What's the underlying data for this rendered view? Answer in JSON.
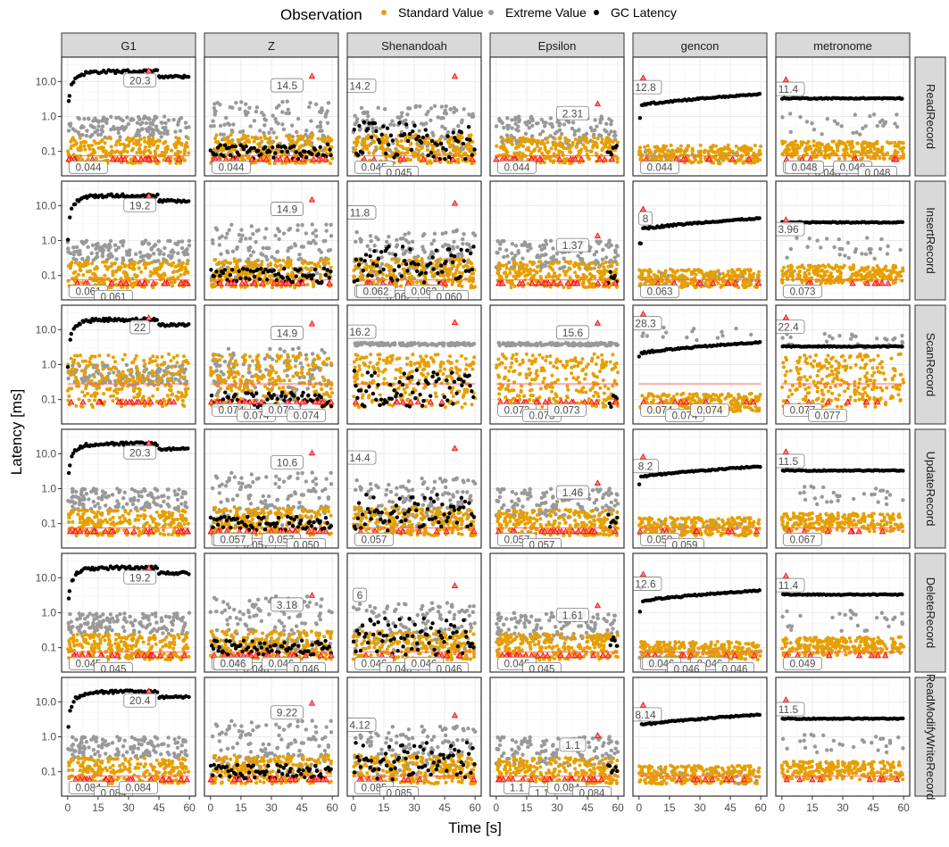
{
  "chart_data": {
    "type": "scatter",
    "legend": {
      "title": "Observation",
      "position": "top",
      "entries": [
        {
          "name": "Standard Value",
          "color": "#e69f00"
        },
        {
          "name": "Extreme Value",
          "color": "#999999"
        },
        {
          "name": "GC Latency",
          "color": "#000000"
        }
      ]
    },
    "xlabel": "Time [s]",
    "ylabel": "Latency [ms]",
    "x_ticks": [
      "0",
      "15",
      "30",
      "45",
      "60"
    ],
    "x_tick_values": [
      0,
      15,
      30,
      45,
      60
    ],
    "xlim": [
      -3,
      63
    ],
    "y_scale": "log",
    "y_ticks": [
      "10.0",
      "1.0",
      "0.1"
    ],
    "y_tick_values": [
      10,
      1,
      0.1
    ],
    "ylim": [
      0.02,
      50
    ],
    "grid": true,
    "columns": [
      "G1",
      "Z",
      "Shenandoah",
      "Epsilon",
      "gencon",
      "metronome"
    ],
    "rows": [
      "ReadRecord",
      "InsertRecord",
      "ScanRecord",
      "UpdateRecord",
      "DeleteRecord",
      "ReadModifyWriteRecord"
    ],
    "colors": {
      "standard": "#e69f00",
      "extreme": "#999999",
      "gc": "#000000",
      "marker": "#ff0000",
      "median_line": "#ff6666",
      "strip_fill": "#d9d9d9"
    },
    "annotations": [
      [
        "20.3",
        "14.5",
        "14.2",
        "2.31",
        "12.8",
        "11.4"
      ],
      [
        "19.2",
        "14.9",
        "11.8",
        "1.37",
        "8",
        "3.96"
      ],
      [
        "22",
        "14.9",
        "16.2",
        "15.6",
        "28.3",
        "22.4"
      ],
      [
        "20.3",
        "10.6",
        "14.4",
        "1.46",
        "8.2",
        "11.5"
      ],
      [
        "19.2",
        "3.18",
        "6",
        "1.61",
        "12.6",
        "11.4"
      ],
      [
        "20.4",
        "9.22",
        "4.12",
        "1.1",
        "8.14",
        "11.5"
      ]
    ],
    "min_annotations": [
      [
        [
          "0.044"
        ],
        [
          "0.044"
        ],
        [
          "0.045",
          "0.045"
        ],
        [
          "0.044"
        ],
        [
          "0.044"
        ],
        [
          "0.048",
          "0.048",
          "0.048",
          "0.048",
          "0.048"
        ]
      ],
      [
        [
          "0.061",
          "0.061"
        ],
        [],
        [
          "0.062",
          "0.062",
          "0.062",
          "0.060",
          "0.062"
        ],
        [],
        [
          "0.063"
        ],
        [
          "0.073"
        ]
      ],
      [
        [],
        [
          "0.074",
          "0.074",
          "0.070",
          "0.074"
        ],
        [],
        [
          "0.073",
          "0.073",
          "0.073"
        ],
        [
          "0.074",
          "0.074",
          "0.074"
        ],
        [
          "0.077",
          "0.077"
        ]
      ],
      [
        [],
        [
          "0.057",
          "0.057",
          "0.057",
          "0.050",
          "0.057"
        ],
        [
          "0.057"
        ],
        [
          "0.057",
          "0.057"
        ],
        [
          "0.059",
          "0.059"
        ],
        [
          "0.067"
        ]
      ],
      [
        [
          "0.045",
          "0.045"
        ],
        [
          "0.046",
          "0.046",
          "0.046",
          "0.046",
          "0.046"
        ],
        [
          "0.046",
          "0.046",
          "0.046",
          "0.046"
        ],
        [
          "0.045",
          "0.045"
        ],
        [
          "0.046",
          "0.046",
          "0.046",
          "0.046",
          "0.046",
          "0.046"
        ],
        [
          "0.049"
        ]
      ],
      [
        [
          "0.084",
          "0.084",
          "0.084"
        ],
        [],
        [
          "0.085",
          "0.085"
        ],
        [
          "1.1",
          "1.1",
          "0.084",
          "0.084"
        ],
        [],
        []
      ]
    ],
    "series_summary": [
      [
        {
          "standard": [
            0.04,
            0.3
          ],
          "extreme": [
            0.25,
            0.8
          ],
          "gc": [
            1,
            20
          ]
        },
        {
          "standard": [
            0.04,
            0.3
          ],
          "extreme": [
            0.05,
            2
          ],
          "gc": [
            0.05,
            0.15
          ]
        },
        {
          "standard": [
            0.04,
            0.3
          ],
          "extreme": [
            0.05,
            1.5
          ],
          "gc": [
            0.05,
            1.0
          ]
        },
        {
          "standard": [
            0.04,
            0.2
          ],
          "extreme": [
            0.2,
            1.0
          ],
          "gc": [
            0.05,
            0.2
          ]
        },
        {
          "standard": [
            0.04,
            0.2
          ],
          "extreme": [
            0.04,
            0.2
          ],
          "gc": [
            1.5,
            5
          ]
        },
        {
          "standard": [
            0.05,
            0.2
          ],
          "extreme": [
            0.3,
            1.0
          ],
          "gc": [
            3,
            3.5
          ]
        }
      ]
    ]
  }
}
